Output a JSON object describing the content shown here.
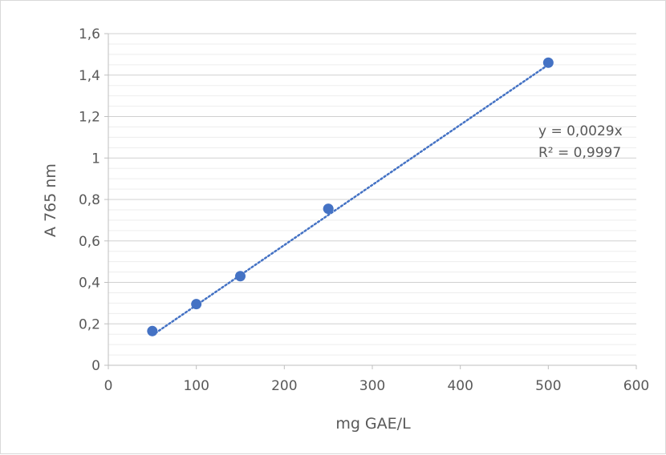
{
  "chart_data": {
    "type": "scatter",
    "title": "",
    "xlabel": "mg GAE/L",
    "ylabel": "A 765 nm",
    "xlim": [
      0,
      600
    ],
    "ylim": [
      0,
      1.6
    ],
    "x_ticks": [
      0,
      100,
      200,
      300,
      400,
      500,
      600
    ],
    "y_ticks": [
      0,
      0.2,
      0.4,
      0.6,
      0.8,
      1.0,
      1.2,
      1.4,
      1.6
    ],
    "x_tick_labels": [
      "0",
      "100",
      "200",
      "300",
      "400",
      "500",
      "600"
    ],
    "y_tick_labels": [
      "0",
      "0,2",
      "0,4",
      "0,6",
      "0,8",
      "1",
      "1,2",
      "1,4",
      "1,6"
    ],
    "grid": true,
    "minor_grid_step": 0.05,
    "series": [
      {
        "x": [
          50,
          100,
          150,
          250,
          500
        ],
        "y": [
          0.165,
          0.295,
          0.43,
          0.755,
          1.46
        ],
        "color": "#4472c4"
      }
    ],
    "trendline": {
      "type": "linear",
      "slope": 0.0029,
      "x_range": [
        50,
        500
      ],
      "style": "dotted",
      "color": "#4472c4"
    },
    "annotations": {
      "equation": "y = 0,0029x",
      "r_squared": "R² = 0,9997"
    }
  }
}
